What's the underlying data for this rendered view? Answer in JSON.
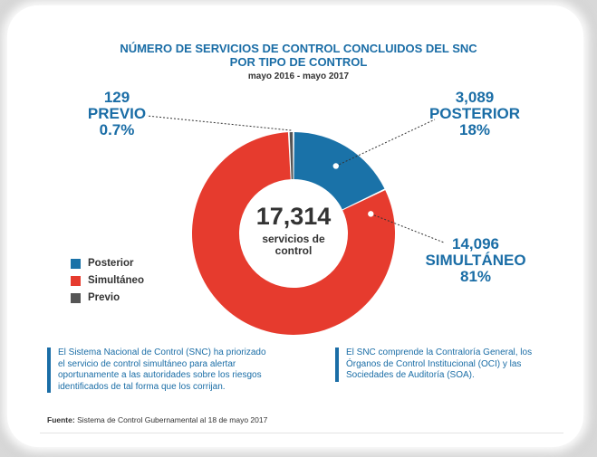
{
  "chart_data": {
    "type": "pie",
    "title_line1": "NÚMERO DE SERVICIOS DE CONTROL CONCLUIDOS DEL SNC",
    "title_line2": "POR TIPO DE CONTROL",
    "subtitle": "mayo 2016 - mayo 2017",
    "center_value": "17,314",
    "center_label_line1": "servicios de",
    "center_label_line2": "control",
    "categories": [
      "Posterior",
      "Simultáneo",
      "Previo"
    ],
    "values": [
      3089,
      14096,
      129
    ],
    "colors": [
      "#1a72a8",
      "#e63b2e",
      "#555555"
    ],
    "annotations": [
      {
        "value": "3,089",
        "name": "POSTERIOR",
        "pct": "18%"
      },
      {
        "value": "14,096",
        "name": "SIMULTÁNEO",
        "pct": "81%"
      },
      {
        "value": "129",
        "name": "PREVIO",
        "pct": "0.7%"
      }
    ],
    "legend": [
      {
        "label": "Posterior",
        "color": "#1a72a8"
      },
      {
        "label": "Simultáneo",
        "color": "#e63b2e"
      },
      {
        "label": "Previo",
        "color": "#555555"
      }
    ],
    "legend_position": "left"
  },
  "notes": [
    {
      "line1": "El Sistema Nacional de Control (SNC) ha priorizado",
      "line2": "el servicio de control simultáneo para alertar",
      "line3": "oportunamente a las autoridades sobre los riesgos",
      "line4": "identificados de tal forma que los corrijan."
    },
    {
      "line1": "El SNC comprende la Contraloría General, los",
      "line2": "Órganos de Control Institucional (OCI) y las",
      "line3": "Sociedades de Auditoría (SOA)."
    }
  ],
  "footer": {
    "label": "Fuente:",
    "text": " Sistema de Control Gubernamental al 18 de mayo 2017"
  }
}
